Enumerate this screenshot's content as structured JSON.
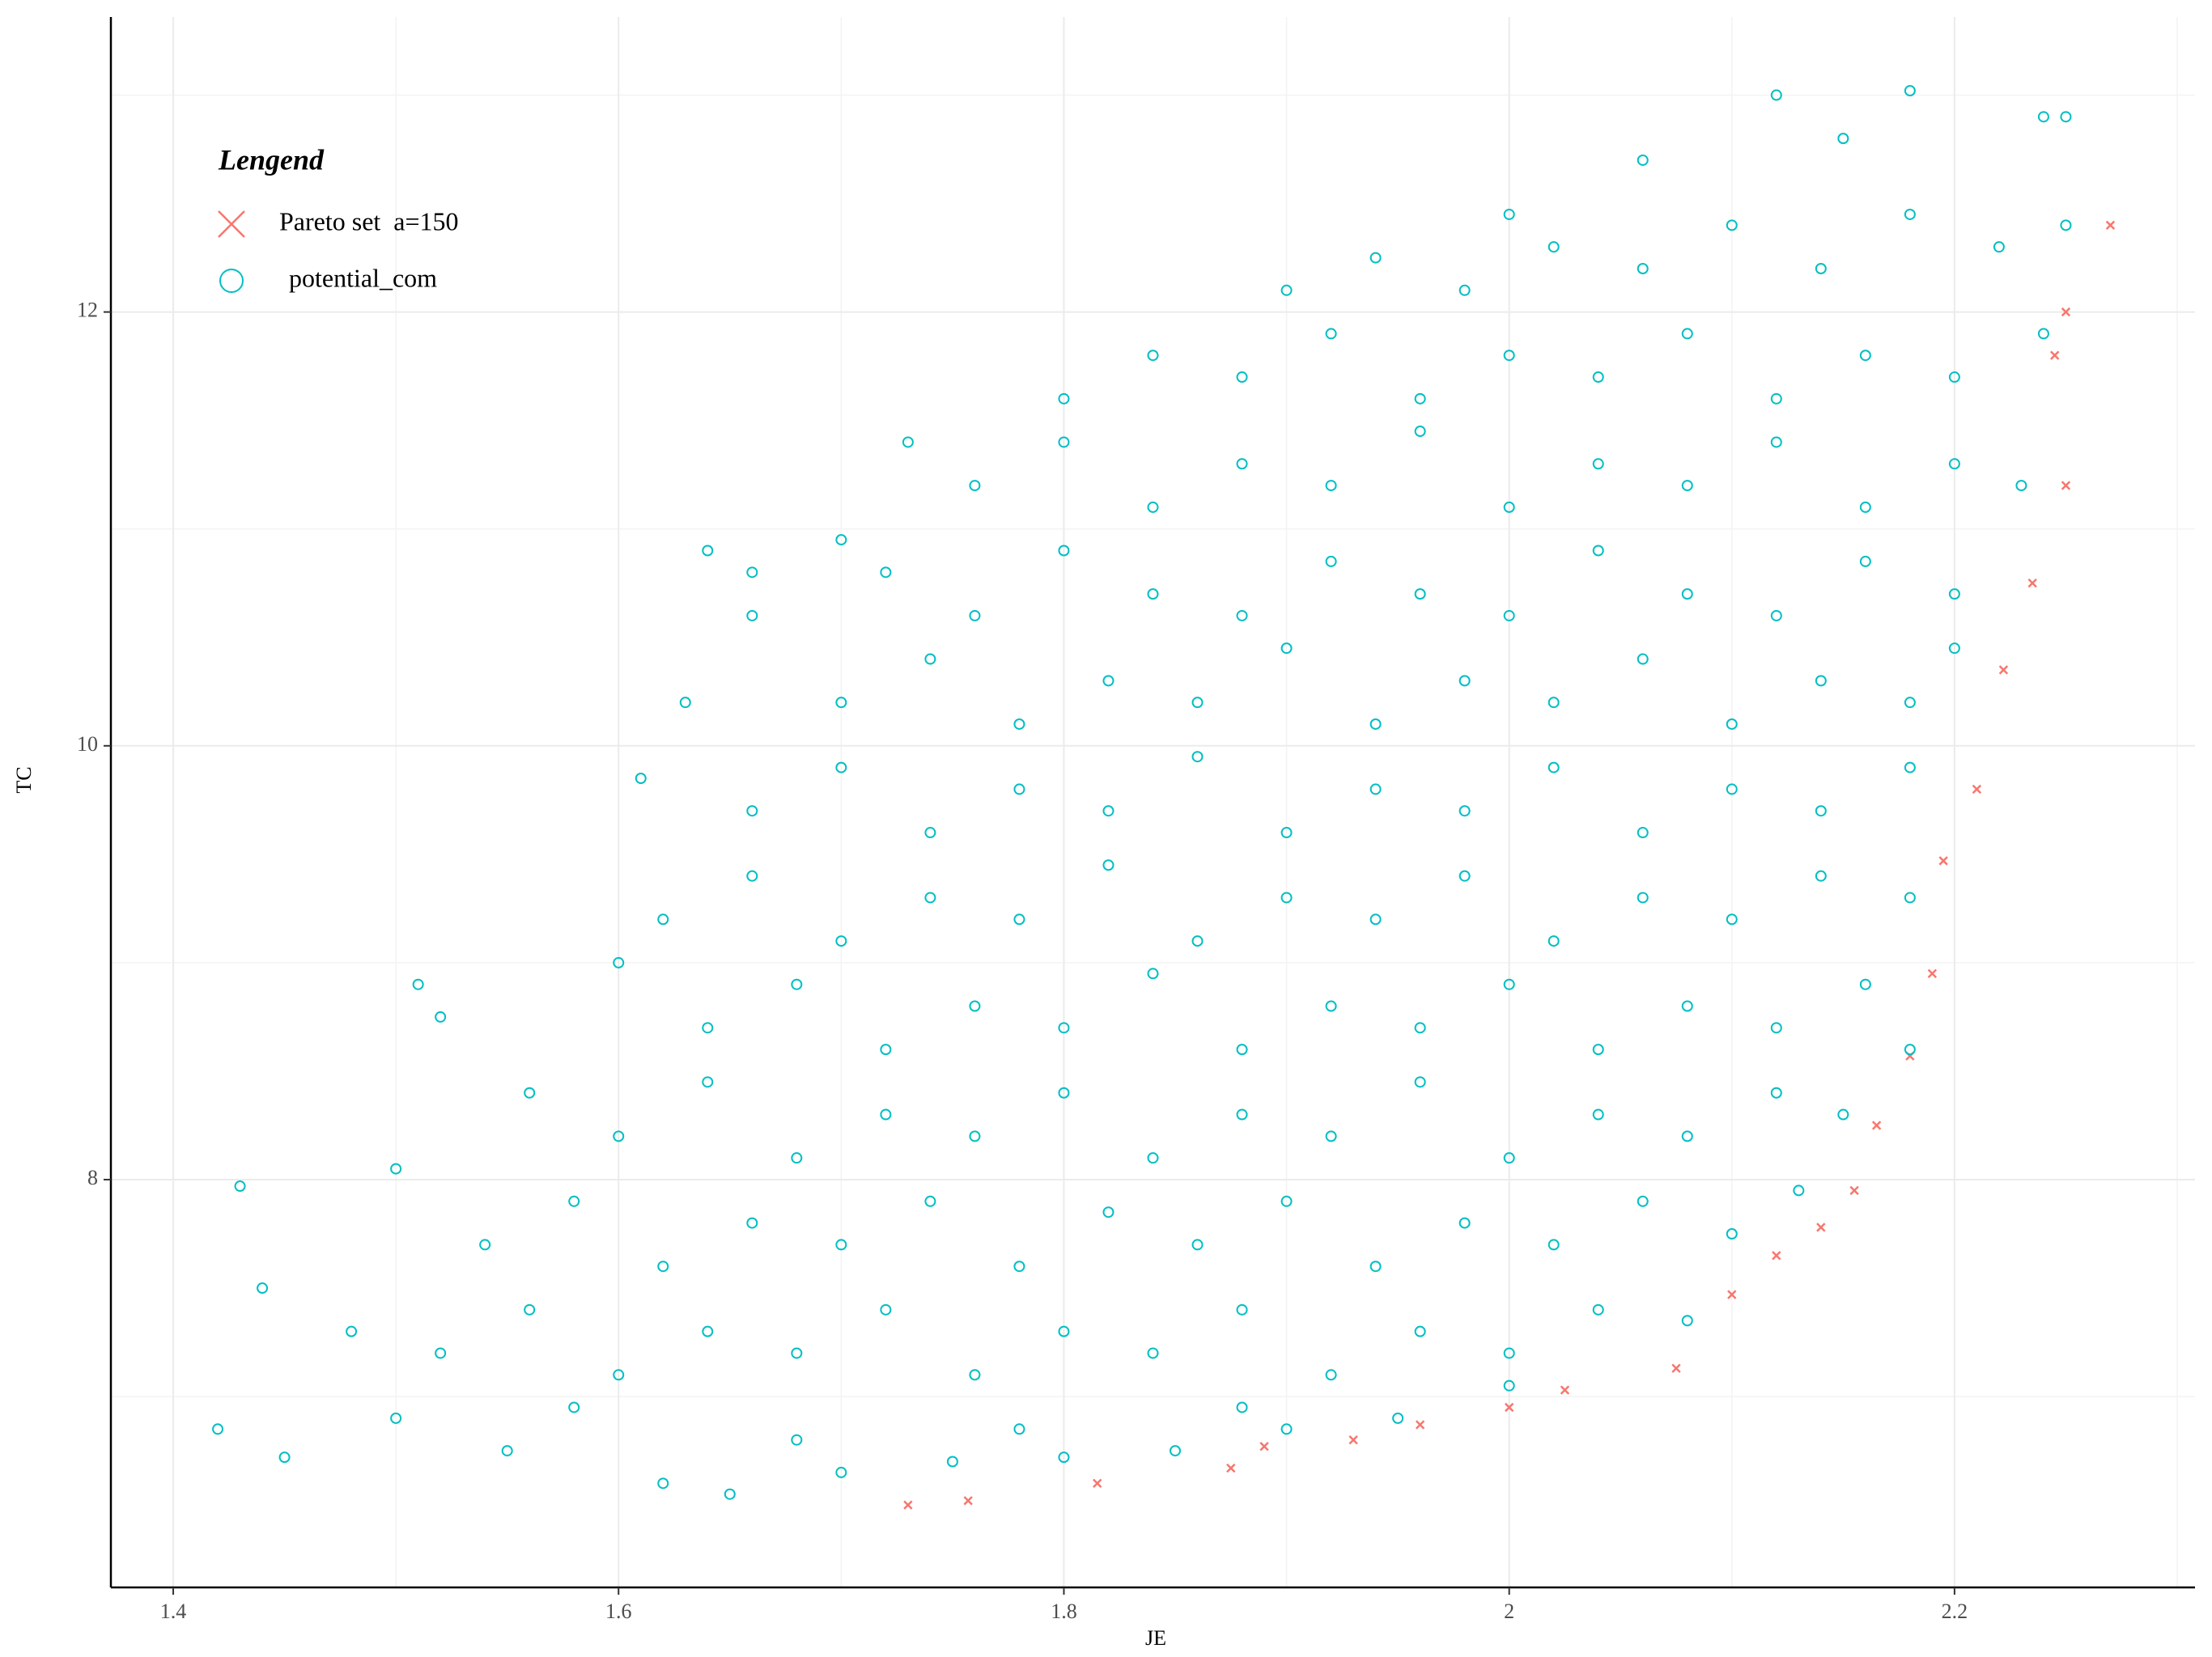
{
  "chart_data": {
    "type": "scatter",
    "x_label": "JE",
    "y_label": "TC",
    "xlim": [
      1.372,
      2.308
    ],
    "ylim": [
      6.12,
      13.36
    ],
    "xticks": [
      1.4,
      1.6,
      1.8,
      2.0,
      2.2
    ],
    "yticks": [
      8,
      10,
      12
    ],
    "xminor": [
      1.5,
      1.7,
      1.9,
      2.1,
      2.3
    ],
    "yminor": [
      7,
      9,
      11,
      13
    ],
    "grid": true,
    "legend_title": "Lengend",
    "legend": "top-left",
    "series": [
      {
        "name": "Pareto set  a=150",
        "color": "#F8766D",
        "marker": "x",
        "x": [
          1.73,
          1.757,
          1.815,
          1.875,
          1.89,
          1.93,
          1.96,
          2.0,
          2.025,
          2.075,
          2.1,
          2.12,
          2.14,
          2.155,
          2.165,
          2.18,
          2.19,
          2.195,
          2.21,
          2.222,
          2.235,
          2.25,
          2.245,
          2.25,
          2.27
        ],
        "values": [
          6.5,
          6.52,
          6.6,
          6.67,
          6.77,
          6.8,
          6.87,
          6.95,
          7.03,
          7.13,
          7.47,
          7.65,
          7.78,
          7.95,
          8.25,
          8.57,
          8.95,
          9.47,
          9.8,
          10.35,
          10.75,
          11.2,
          11.8,
          12.0,
          12.4
        ]
      },
      {
        "name": "potential_com",
        "color": "#00BFC4",
        "marker": "circle",
        "x": [
          1.62,
          1.65,
          1.7,
          1.75,
          1.8,
          1.85,
          1.9,
          1.95,
          1.45,
          1.5,
          1.55,
          1.58,
          1.42,
          1.68,
          1.78,
          1.88,
          2.0,
          1.44,
          1.48,
          1.52,
          1.56,
          1.6,
          1.64,
          1.68,
          1.72,
          1.76,
          1.8,
          1.84,
          1.88,
          1.92,
          1.96,
          2.0,
          2.04,
          2.08,
          1.5,
          1.54,
          1.58,
          1.62,
          1.66,
          1.7,
          1.74,
          1.78,
          1.82,
          1.86,
          1.9,
          1.94,
          1.98,
          2.02,
          2.06,
          2.1,
          2.13,
          1.56,
          1.6,
          1.64,
          1.68,
          1.72,
          1.76,
          1.8,
          1.84,
          1.88,
          1.92,
          1.96,
          2.0,
          2.04,
          2.08,
          2.12,
          2.15,
          1.52,
          1.6,
          1.64,
          1.68,
          1.72,
          1.76,
          1.8,
          1.84,
          1.88,
          1.92,
          1.96,
          2.0,
          2.04,
          2.08,
          2.12,
          2.16,
          2.18,
          1.62,
          1.66,
          1.7,
          1.74,
          1.78,
          1.82,
          1.86,
          1.9,
          1.94,
          1.98,
          2.02,
          2.06,
          2.1,
          2.14,
          2.18,
          1.66,
          1.7,
          1.74,
          1.78,
          1.82,
          1.86,
          1.9,
          1.94,
          1.98,
          2.02,
          2.06,
          2.1,
          2.14,
          2.18,
          1.61,
          1.7,
          1.74,
          1.78,
          1.82,
          1.86,
          1.9,
          1.94,
          1.98,
          2.02,
          2.06,
          2.1,
          2.14,
          2.18,
          2.2,
          1.63,
          1.66,
          1.72,
          1.76,
          1.8,
          1.84,
          1.88,
          1.92,
          1.96,
          2.0,
          2.04,
          2.08,
          2.12,
          2.16,
          2.2,
          1.7,
          1.76,
          1.8,
          1.84,
          1.88,
          1.92,
          1.96,
          2.0,
          2.04,
          2.08,
          2.12,
          2.16,
          2.2,
          2.23,
          1.73,
          1.8,
          1.84,
          1.88,
          1.92,
          1.96,
          2.0,
          2.04,
          2.08,
          2.12,
          2.16,
          2.2,
          2.24,
          1.9,
          1.94,
          1.98,
          2.02,
          2.06,
          2.1,
          2.14,
          2.18,
          2.22,
          2.25,
          2.0,
          2.12,
          2.18,
          2.15,
          2.24,
          2.25,
          2.06,
          1.43,
          1.51,
          1.64,
          1.66
        ],
        "values": [
          6.6,
          6.55,
          6.65,
          6.7,
          6.72,
          6.75,
          6.85,
          6.9,
          6.72,
          6.9,
          6.75,
          6.95,
          6.85,
          6.8,
          6.85,
          6.95,
          7.05,
          7.5,
          7.3,
          7.2,
          7.4,
          7.1,
          7.3,
          7.2,
          7.4,
          7.1,
          7.3,
          7.2,
          7.4,
          7.1,
          7.3,
          7.2,
          7.4,
          7.35,
          8.05,
          7.7,
          7.9,
          7.6,
          7.8,
          7.7,
          7.9,
          7.6,
          7.85,
          7.7,
          7.9,
          7.6,
          7.8,
          7.7,
          7.9,
          7.75,
          7.95,
          8.4,
          8.2,
          8.45,
          8.1,
          8.3,
          8.2,
          8.4,
          8.1,
          8.3,
          8.2,
          8.45,
          8.1,
          8.3,
          8.2,
          8.4,
          8.3,
          8.75,
          9.0,
          8.7,
          8.9,
          8.6,
          8.8,
          8.7,
          8.95,
          8.6,
          8.8,
          8.7,
          8.9,
          8.6,
          8.8,
          8.7,
          8.9,
          8.6,
          9.2,
          9.4,
          9.1,
          9.3,
          9.2,
          9.45,
          9.1,
          9.3,
          9.2,
          9.4,
          9.1,
          9.3,
          9.2,
          9.4,
          9.3,
          9.7,
          9.9,
          9.6,
          9.8,
          9.7,
          9.95,
          9.6,
          9.8,
          9.7,
          9.9,
          9.6,
          9.8,
          9.7,
          9.9,
          9.85,
          10.2,
          10.4,
          10.1,
          10.3,
          10.2,
          10.45,
          10.1,
          10.3,
          10.2,
          10.4,
          10.1,
          10.3,
          10.2,
          10.45,
          10.2,
          10.6,
          10.8,
          10.6,
          10.9,
          10.7,
          10.6,
          10.85,
          10.7,
          10.6,
          10.9,
          10.7,
          10.6,
          10.85,
          10.7,
          10.95,
          11.2,
          11.4,
          11.1,
          11.3,
          11.2,
          11.45,
          11.1,
          11.3,
          11.2,
          11.4,
          11.1,
          11.3,
          11.2,
          11.4,
          11.6,
          11.8,
          11.7,
          11.9,
          11.6,
          11.8,
          11.7,
          11.9,
          11.6,
          11.8,
          11.7,
          11.9,
          12.1,
          12.25,
          12.1,
          12.3,
          12.2,
          12.4,
          12.2,
          12.45,
          12.3,
          12.4,
          12.45,
          13.0,
          13.02,
          12.8,
          12.9,
          12.9,
          12.7,
          7.97,
          8.9,
          10.9,
          10.8
        ]
      }
    ]
  }
}
